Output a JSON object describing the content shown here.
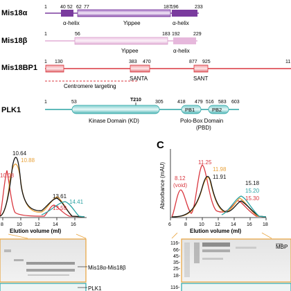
{
  "domains": {
    "mis18a": {
      "name": "Mis18α",
      "numbers": [
        "1",
        "40",
        "52",
        "62",
        "77",
        "187",
        "196",
        "233"
      ],
      "regions": [
        "α-helix",
        "Yippee",
        "α-helix"
      ]
    },
    "mis18b": {
      "name": "Mis18β",
      "numbers": [
        "1",
        "56",
        "183",
        "192",
        "229"
      ],
      "regions": [
        "Yippee",
        "α-helix"
      ]
    },
    "mis18bp1": {
      "name": "Mis18BP1",
      "numbers": [
        "1",
        "130",
        "383",
        "470",
        "877",
        "925",
        "11"
      ],
      "regions": [
        "SANTA",
        "SANT"
      ],
      "annotation": "Centromere targeting"
    },
    "plk1": {
      "name": "PLK1",
      "numbers": [
        "1",
        "53",
        "T210",
        "305",
        "418",
        "479",
        "516",
        "583",
        "603"
      ],
      "regions": [
        "PB1",
        "PB2"
      ],
      "kinase_label": "Kinase Domain (KD)",
      "pbd_label": [
        "Polo-Box Domain",
        "(PBD)"
      ]
    }
  },
  "chromatogram_b": {
    "peak_labels": [
      "10.64",
      "10.08",
      "10.88",
      "13.61",
      "13.59",
      "14.41"
    ],
    "xticks": [
      "8",
      "10",
      "12",
      "14",
      "16"
    ],
    "xlabel": "Elution volume (ml)",
    "gel_labels": [
      "Mis18α-Mis18β",
      "PLK1"
    ]
  },
  "chromatogram_c": {
    "panel_letter": "C",
    "ylabel": "Absorbance (mAU)",
    "peak_labels": [
      "11.25",
      "11.98",
      "11.91",
      "8.12",
      "(void)",
      "15.18",
      "15.20",
      "15.30"
    ],
    "xticks": [
      "6",
      "8",
      "10",
      "12",
      "14",
      "16",
      "18"
    ],
    "xlabel": "Elution volume (ml)",
    "gel_markers": [
      "116-",
      "66-",
      "45-",
      "35-",
      "25-",
      "18-",
      "116-"
    ],
    "gel_label": "MBP"
  },
  "colors": {
    "mis18a": "#7a3b9e",
    "mis18b": "#e6b8dc",
    "mis18bp1": "#d9363e",
    "plk1": "#2aa3a3",
    "orange": "#e8a23a",
    "black": "#111111"
  }
}
